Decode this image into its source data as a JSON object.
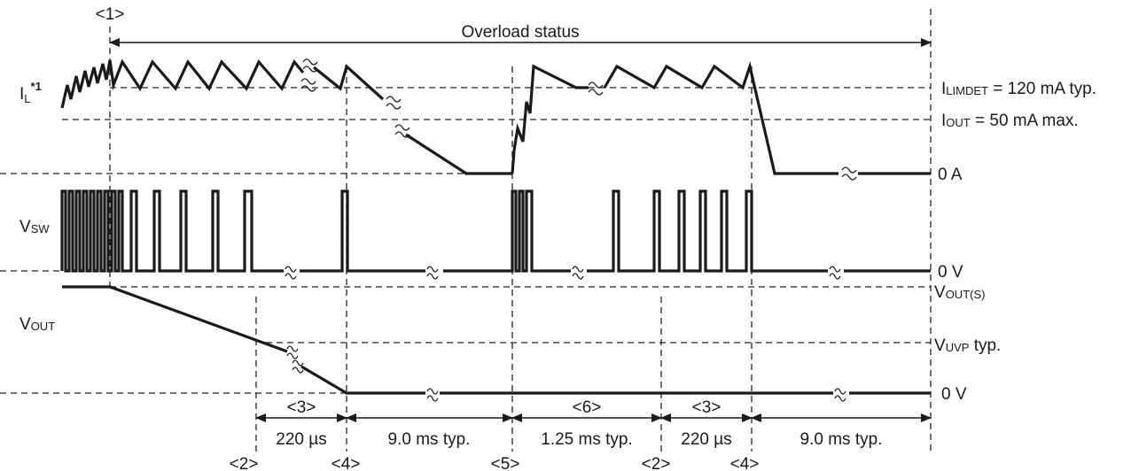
{
  "markers": {
    "m1": "<1>",
    "m2a": "<2>",
    "m3a": "<3>",
    "m4a": "<4>",
    "m5": "<5>",
    "m6": "<6>",
    "m2b": "<2>",
    "m3b": "<3>",
    "m4b": "<4>"
  },
  "labels": {
    "overload": "Overload status",
    "il_main": "I",
    "il_sub": "L",
    "il_sup": "*1",
    "vsw_main": "V",
    "vsw_sub": "SW",
    "vout_main": "V",
    "vout_sub": "OUT"
  },
  "levels": {
    "ilimdet_main": "I",
    "ilimdet_sub": "LIMDET",
    "ilimdet_val": " = 120 mA typ.",
    "iout_main": "I",
    "iout_sub": "OUT",
    "iout_val": " = 50 mA max.",
    "zero_a": "0 A",
    "zero_v1": "0 V",
    "voutS_main": "V",
    "voutS_sub": "OUT(S)",
    "vuvp_main": "V",
    "vuvp_sub": "UVP",
    "vuvp_val": " typ.",
    "zero_v2": "0 V"
  },
  "timing": {
    "t1": "220 µs",
    "t2": "9.0 ms typ.",
    "t3": "1.25 ms typ.",
    "t4": "220 µs",
    "t5": "9.0 ms typ."
  }
}
